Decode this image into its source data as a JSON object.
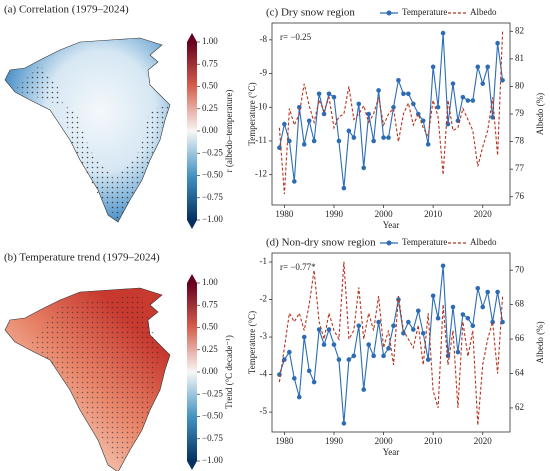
{
  "maps": [
    {
      "title": "(a) Correlation (1979–2024)",
      "colorbar": {
        "label": "r (albedo–temperature)",
        "lim": [
          -1,
          1
        ],
        "ticks": [
          {
            "value": 1,
            "label": "1.00"
          },
          {
            "value": 0.75,
            "label": "0.75"
          },
          {
            "value": 0.5,
            "label": "0.50"
          },
          {
            "value": 0.25,
            "label": "0.25"
          },
          {
            "value": 0,
            "label": "0.00"
          },
          {
            "value": -0.25,
            "label": "−0.25"
          },
          {
            "value": -0.5,
            "label": "−0.50"
          },
          {
            "value": -0.75,
            "label": "−0.75"
          },
          {
            "value": -1,
            "label": "−1.00"
          }
        ]
      }
    },
    {
      "title": "(b) Temperature trend (1979–2024)",
      "colorbar": {
        "label": "Trend (°C decade⁻¹)",
        "lim": [
          -1,
          1
        ],
        "ticks": [
          {
            "value": 1,
            "label": "1.00"
          },
          {
            "value": 0.75,
            "label": "0.75"
          },
          {
            "value": 0.5,
            "label": "0.50"
          },
          {
            "value": 0.25,
            "label": "0.25"
          },
          {
            "value": 0,
            "label": "0.00"
          },
          {
            "value": -0.25,
            "label": "−0.25"
          },
          {
            "value": -0.5,
            "label": "−0.50"
          },
          {
            "value": -0.75,
            "label": "−0.75"
          },
          {
            "value": -1,
            "label": "−1.00"
          }
        ]
      }
    }
  ],
  "chart_data": [
    {
      "type": "line",
      "title": "(c) Dry snow region",
      "annotation": "r= −0.25",
      "x_label": "Year",
      "y_label": "Temperature (°C)",
      "y2_label": "Albedo (%)",
      "legend": "top",
      "x": [
        1979,
        1980,
        1981,
        1982,
        1983,
        1984,
        1985,
        1986,
        1987,
        1988,
        1989,
        1990,
        1991,
        1992,
        1993,
        1994,
        1995,
        1996,
        1997,
        1998,
        1999,
        2000,
        2001,
        2002,
        2003,
        2004,
        2005,
        2006,
        2007,
        2008,
        2009,
        2010,
        2011,
        2012,
        2013,
        2014,
        2015,
        2016,
        2017,
        2018,
        2019,
        2020,
        2021,
        2022,
        2023,
        2024
      ],
      "xlim": [
        1977.5,
        2025.5
      ],
      "xticks": [
        1980,
        1990,
        2000,
        2010,
        2020
      ],
      "ylim": [
        -12.9,
        -7.5
      ],
      "yticks": [
        -12,
        -11,
        -10,
        -9,
        -8
      ],
      "y2lim": [
        75.7,
        82.3
      ],
      "y2ticks": [
        76,
        77,
        78,
        79,
        80,
        81,
        82
      ],
      "series": [
        {
          "name": "Temperature",
          "color": "#2b6cb5",
          "marker": "o",
          "linestyle": "solid",
          "values": [
            -11.2,
            -10.5,
            -11.0,
            -12.2,
            -10.0,
            -11.1,
            -10.4,
            -11.0,
            -9.6,
            -10.2,
            -9.6,
            -9.7,
            -11.0,
            -12.4,
            -10.7,
            -10.9,
            -9.9,
            -11.8,
            -10.2,
            -11.0,
            -9.5,
            -10.9,
            -10.9,
            -10.0,
            -9.2,
            -9.6,
            -9.6,
            -9.9,
            -10.2,
            -10.4,
            -11.1,
            -8.8,
            -10.0,
            -7.8,
            -10.5,
            -9.3,
            -10.4,
            -9.7,
            -9.8,
            -9.8,
            -8.8,
            -9.3,
            -8.8,
            -10.3,
            -8.1,
            -9.2
          ]
        },
        {
          "name": "Albedo",
          "color": "#b8331f",
          "axis": "y2",
          "linestyle": "dashed",
          "values": [
            78.5,
            76.1,
            79.2,
            78.6,
            79.0,
            80.1,
            79.3,
            78.7,
            79.5,
            79.1,
            79.6,
            78.5,
            78.9,
            79.0,
            80.0,
            78.8,
            79.0,
            79.3,
            78.7,
            79.0,
            79.6,
            78.6,
            79.0,
            79.2,
            78.0,
            79.0,
            79.4,
            78.6,
            79.0,
            78.5,
            78.2,
            79.5,
            78.9,
            76.8,
            79.5,
            78.4,
            78.5,
            79.2,
            78.8,
            78.4,
            77.1,
            77.8,
            78.4,
            79.6,
            77.5,
            82.0
          ]
        }
      ]
    },
    {
      "type": "line",
      "title": "(d) Non-dry snow region",
      "annotation": "r= −0.77*",
      "x_label": "Year",
      "y_label": "Temperature (°C)",
      "y2_label": "Albedo (%)",
      "legend": "top",
      "x": [
        1979,
        1980,
        1981,
        1982,
        1983,
        1984,
        1985,
        1986,
        1987,
        1988,
        1989,
        1990,
        1991,
        1992,
        1993,
        1994,
        1995,
        1996,
        1997,
        1998,
        1999,
        2000,
        2001,
        2002,
        2003,
        2004,
        2005,
        2006,
        2007,
        2008,
        2009,
        2010,
        2011,
        2012,
        2013,
        2014,
        2015,
        2016,
        2017,
        2018,
        2019,
        2020,
        2021,
        2022,
        2023,
        2024
      ],
      "xlim": [
        1977.5,
        2025.5
      ],
      "xticks": [
        1980,
        1990,
        2000,
        2010,
        2020
      ],
      "ylim": [
        -5.53,
        -0.76
      ],
      "yticks": [
        -5,
        -4,
        -3,
        -2,
        -1
      ],
      "y2lim": [
        60.6,
        71
      ],
      "y2ticks": [
        62,
        64,
        66,
        68,
        70
      ],
      "series": [
        {
          "name": "Temperature",
          "color": "#2b6cb5",
          "marker": "o",
          "linestyle": "solid",
          "values": [
            -4.0,
            -3.6,
            -3.4,
            -4.1,
            -4.6,
            -3.0,
            -3.9,
            -4.2,
            -2.8,
            -3.2,
            -2.8,
            -3.2,
            -3.6,
            -5.3,
            -3.6,
            -3.5,
            -2.7,
            -4.4,
            -3.2,
            -3.5,
            -2.6,
            -3.5,
            -3.3,
            -2.7,
            -2.0,
            -2.9,
            -2.6,
            -2.8,
            -2.3,
            -2.9,
            -3.6,
            -1.9,
            -2.5,
            -1.1,
            -3.5,
            -2.2,
            -3.4,
            -2.4,
            -2.5,
            -2.7,
            -1.7,
            -2.2,
            -1.8,
            -2.6,
            -1.8,
            -2.6
          ]
        },
        {
          "name": "Albedo",
          "color": "#b8331f",
          "axis": "y2",
          "linestyle": "dashed",
          "values": [
            63.5,
            65.5,
            67.5,
            67.0,
            67.5,
            66.5,
            68.0,
            70.0,
            67.0,
            66.0,
            67.5,
            66.5,
            66.0,
            70.5,
            66.0,
            66.5,
            69.0,
            66.0,
            67.5,
            66.5,
            68.5,
            65.5,
            66.5,
            64.5,
            68.5,
            66.5,
            66.0,
            65.5,
            66.8,
            64.5,
            67.5,
            63.0,
            62.0,
            68.0,
            64.5,
            66.5,
            62.0,
            67.0,
            65.0,
            66.5,
            61.0,
            64.5,
            66.0,
            67.0,
            64.0,
            68.5
          ]
        }
      ]
    }
  ]
}
